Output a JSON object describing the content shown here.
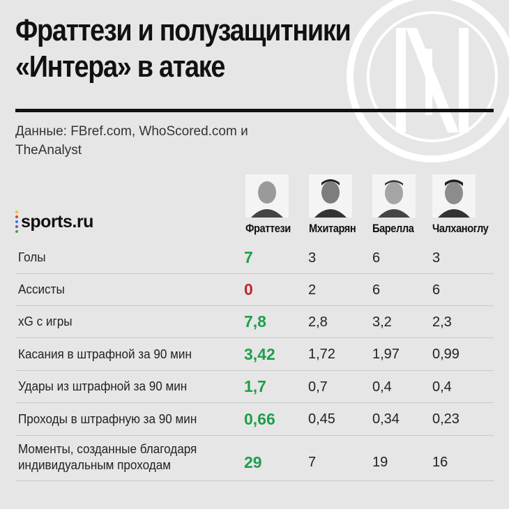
{
  "title": "Фраттези и полузащитники «Интера» в атаке",
  "source": "Данные: FBref.com, WhoScored.com и TheAnalyst",
  "brand": "sports.ru",
  "colors": {
    "background": "#e6e6e6",
    "best_green": "#1f9e4a",
    "worst_red": "#c0262d",
    "text": "#1a1a1a",
    "brand_dots": [
      "#f2c500",
      "#e53935",
      "#1e88e5",
      "#8e44ad",
      "#43a047"
    ]
  },
  "players": [
    {
      "name": "Фраттези",
      "photo_icon": "player-photo"
    },
    {
      "name": "Мхитарян",
      "photo_icon": "player-photo"
    },
    {
      "name": "Барелла",
      "photo_icon": "player-photo"
    },
    {
      "name": "Чалханоглу",
      "photo_icon": "player-photo"
    }
  ],
  "rows": [
    {
      "label": "Голы",
      "values": [
        "7",
        "3",
        "6",
        "3"
      ],
      "highlight": "best"
    },
    {
      "label": "Ассисты",
      "values": [
        "0",
        "2",
        "6",
        "6"
      ],
      "highlight": "worst"
    },
    {
      "label": "xG с игры",
      "values": [
        "7,8",
        "2,8",
        "3,2",
        "2,3"
      ],
      "highlight": "best"
    },
    {
      "label": "Касания в штрафной за 90 мин",
      "values": [
        "3,42",
        "1,72",
        "1,97",
        "0,99"
      ],
      "highlight": "best"
    },
    {
      "label": "Удары из штрафной за 90 мин",
      "values": [
        "1,7",
        "0,7",
        "0,4",
        "0,4"
      ],
      "highlight": "best"
    },
    {
      "label": "Проходы в штрафную за 90 мин",
      "values": [
        "0,66",
        "0,45",
        "0,34",
        "0,23"
      ],
      "highlight": "best"
    },
    {
      "label": "Моменты, созданные благодаря индивидуальным проходам",
      "values": [
        "29",
        "7",
        "19",
        "16"
      ],
      "highlight": "best"
    }
  ]
}
